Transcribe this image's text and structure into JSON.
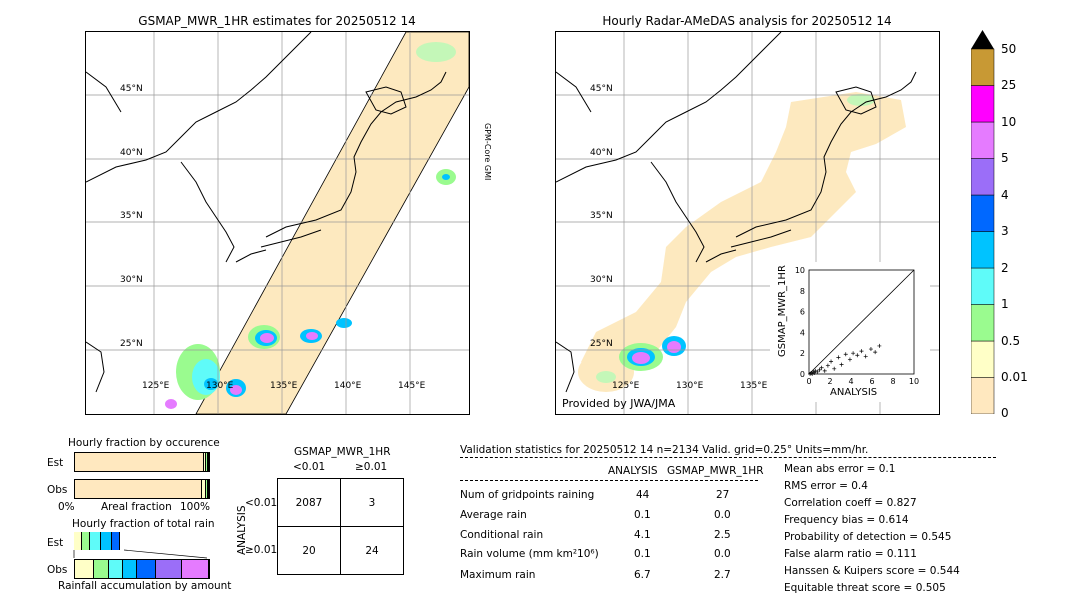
{
  "left_map": {
    "title": "GSMAP_MWR_1HR estimates for 20250512 14",
    "lat_labels": [
      "45°N",
      "40°N",
      "35°N",
      "30°N",
      "25°N"
    ],
    "lon_labels": [
      "125°E",
      "130°E",
      "135°E",
      "140°E",
      "145°E"
    ],
    "side_label": "GPM-Core GMI"
  },
  "right_map": {
    "title": "Hourly Radar-AMeDAS analysis for 20250512 14",
    "lat_labels": [
      "45°N",
      "40°N",
      "35°N",
      "30°N",
      "25°N"
    ],
    "lon_labels": [
      "125°E",
      "130°E",
      "135°E"
    ],
    "credit": "Provided by JWA/JMA"
  },
  "colorbar": {
    "ticks": [
      "50",
      "25",
      "10",
      "5",
      "4",
      "3",
      "2",
      "1",
      "0.5",
      "0.01",
      "0"
    ],
    "colors": [
      "#ffe8bf",
      "#ffffc7",
      "#9afb8f",
      "#5ffbf9",
      "#00c3ff",
      "#0068ff",
      "#9b6ef8",
      "#e57bff",
      "#ff00ff",
      "#c89934"
    ],
    "over_color": "#000000"
  },
  "scatter": {
    "ylabel": "GSMAP_MWR_1HR",
    "xlabel": "ANALYSIS",
    "ticks": [
      "0",
      "2",
      "4",
      "6",
      "8",
      "10"
    ]
  },
  "chart_data": {
    "type": "scatter",
    "x": [
      0.1,
      0.2,
      0.3,
      0.4,
      0.5,
      0.6,
      0.8,
      1.0,
      1.2,
      1.5,
      1.8,
      2.1,
      2.4,
      2.8,
      3.1,
      3.5,
      3.9,
      4.2,
      4.6,
      5.0,
      5.4,
      5.9,
      6.3,
      6.7
    ],
    "y": [
      0.0,
      0.1,
      0.0,
      0.2,
      0.1,
      0.3,
      0.2,
      0.4,
      0.6,
      0.3,
      0.8,
      1.2,
      0.5,
      1.6,
      0.9,
      1.9,
      1.4,
      2.0,
      1.8,
      2.2,
      1.7,
      2.4,
      2.1,
      2.7
    ],
    "xlim": [
      0,
      10
    ],
    "ylim": [
      0,
      10
    ]
  },
  "fraction_occurrence": {
    "title": "Hourly fraction by occurence",
    "rows": [
      "Est",
      "Obs"
    ],
    "axis_left": "0%",
    "axis_mid": "Areal fraction",
    "axis_right": "100%",
    "est_values": [
      0.96,
      0.02,
      0.01,
      0.01
    ],
    "obs_values": [
      0.95,
      0.03,
      0.01,
      0.01
    ],
    "segment_colors": [
      "#ffe8bf",
      "#ffffc7",
      "#9afb8f",
      "#000000"
    ]
  },
  "fraction_total": {
    "title": "Hourly fraction of total rain",
    "rows": [
      "Est",
      "Obs"
    ],
    "footer": "Rainfall accumulation by amount",
    "est_values": [
      0.06,
      0.06,
      0.08,
      0.08,
      0.06
    ],
    "obs_values": [
      0.15,
      0.11,
      0.11,
      0.11,
      0.15,
      0.2,
      0.21
    ],
    "segment_colors": [
      "#ffffc7",
      "#9afb8f",
      "#5ffbf9",
      "#00c3ff",
      "#0068ff",
      "#9b6ef8",
      "#e57bff"
    ]
  },
  "contingency": {
    "title": "GSMAP_MWR_1HR",
    "col_headers": [
      "<0.01",
      "≥0.01"
    ],
    "row_axis": "ANALYSIS",
    "row_headers": [
      "<0.01",
      "≥0.01"
    ],
    "cells": [
      [
        "2087",
        "3"
      ],
      [
        "20",
        "24"
      ]
    ]
  },
  "validation": {
    "header": "Validation statistics for 20250512 14  n=2134 Valid. grid=0.25° Units=mm/hr.",
    "col1": "ANALYSIS",
    "col2": "GSMAP_MWR_1HR",
    "rows": [
      {
        "label": "Num of gridpoints raining",
        "a": "44",
        "b": "27"
      },
      {
        "label": "Average rain",
        "a": "0.1",
        "b": "0.0"
      },
      {
        "label": "Conditional rain",
        "a": "4.1",
        "b": "2.5"
      },
      {
        "label": "Rain volume (mm km²10⁶)",
        "a": "0.1",
        "b": "0.0"
      },
      {
        "label": "Maximum rain",
        "a": "6.7",
        "b": "2.7"
      }
    ],
    "scores": [
      "Mean abs error =    0.1",
      "RMS error =    0.4",
      "Correlation coeff =  0.827",
      "Frequency bias =  0.614",
      "Probability of detection =  0.545",
      "False alarm ratio =  0.111",
      "Hanssen & Kuipers score =  0.544",
      "Equitable threat score =  0.505"
    ]
  }
}
